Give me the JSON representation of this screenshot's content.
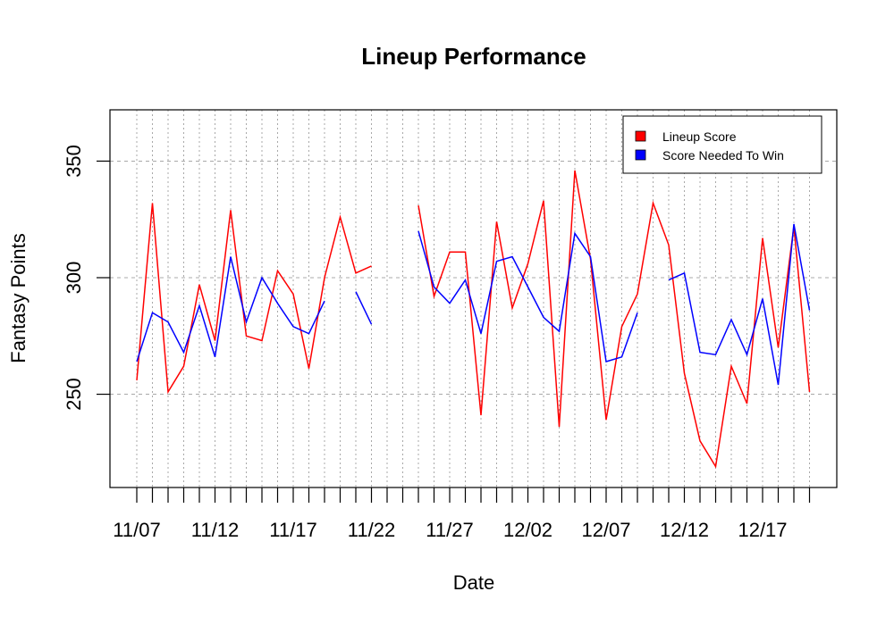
{
  "chart_data": {
    "type": "line",
    "title": "Lineup Performance",
    "xlabel": "Date",
    "ylabel": "Fantasy Points",
    "x_tick_labels": [
      "11/07",
      "11/12",
      "11/17",
      "11/22",
      "11/27",
      "12/02",
      "12/07",
      "12/12",
      "12/17"
    ],
    "y_ticks": [
      250,
      300,
      350
    ],
    "ylim": [
      210,
      372
    ],
    "xlim": [
      "11/06",
      "12/21"
    ],
    "grid": true,
    "legend_position": "top-right",
    "colors": {
      "lineup": "#ff0000",
      "win": "#0000ff"
    },
    "x": [
      "11/07",
      "11/08",
      "11/09",
      "11/10",
      "11/11",
      "11/12",
      "11/13",
      "11/14",
      "11/15",
      "11/16",
      "11/17",
      "11/18",
      "11/19",
      "11/20",
      "11/21",
      "11/22",
      "11/23",
      "11/24",
      "11/25",
      "11/26",
      "11/27",
      "11/28",
      "11/29",
      "11/30",
      "12/01",
      "12/02",
      "12/03",
      "12/04",
      "12/05",
      "12/06",
      "12/07",
      "12/08",
      "12/09",
      "12/10",
      "12/11",
      "12/12",
      "12/13",
      "12/14",
      "12/15",
      "12/16",
      "12/17",
      "12/18",
      "12/19",
      "12/20"
    ],
    "series": [
      {
        "name": "Lineup Score",
        "color": "#ff0000",
        "values": [
          256,
          332,
          251,
          262,
          297,
          273,
          329,
          275,
          273,
          303,
          293,
          261,
          300,
          326,
          302,
          305,
          null,
          null,
          331,
          292,
          311,
          311,
          241,
          324,
          287,
          306,
          333,
          236,
          346,
          308,
          239,
          279,
          293,
          332,
          314,
          259,
          230,
          219,
          262,
          246,
          317,
          270,
          322,
          251
        ]
      },
      {
        "name": "Score Needed To Win",
        "color": "#0000ff",
        "values": [
          264,
          285,
          281,
          268,
          288,
          266,
          309,
          281,
          300,
          289,
          279,
          276,
          290,
          null,
          294,
          280,
          null,
          null,
          320,
          296,
          289,
          299,
          276,
          307,
          309,
          296,
          283,
          277,
          319,
          309,
          264,
          266,
          285,
          null,
          299,
          302,
          268,
          267,
          282,
          267,
          291,
          254,
          323,
          286
        ]
      }
    ]
  }
}
